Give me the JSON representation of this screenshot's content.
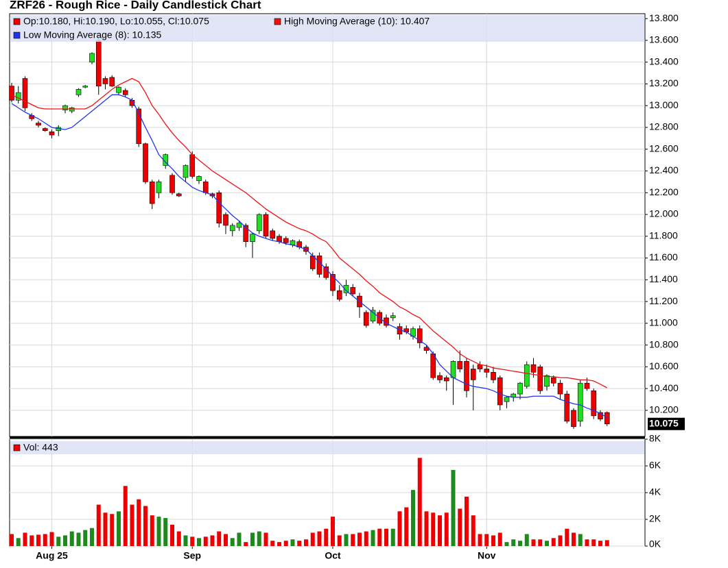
{
  "chart_data": [
    {
      "type": "candlestick",
      "title": "ZRF26 - Rough Rice - Daily Candlestick Chart",
      "legend": "Op:10.180, Hi:10.190, Lo:10.055, Cl:10.075",
      "up_color": "#22dd22",
      "down_color": "#ee0000",
      "open": [
        13.18,
        13.05,
        13.25,
        12.91,
        12.84,
        12.79,
        12.76,
        12.77,
        12.96,
        12.95,
        13.1,
        13.17,
        13.4,
        13.6,
        13.25,
        13.26,
        13.12,
        13.14,
        13.05,
        12.97,
        12.65,
        12.3,
        12.2,
        12.45,
        12.36,
        12.19,
        12.34,
        12.55,
        12.31,
        12.3,
        12.19,
        12.2,
        12.0,
        11.85,
        11.88,
        11.9,
        11.75,
        11.85,
        12.0,
        11.85,
        11.8,
        11.78,
        11.72,
        11.75,
        11.7,
        11.62,
        11.62,
        11.52,
        11.45,
        11.3,
        11.28,
        11.33,
        11.25,
        11.1,
        11.02,
        11.1,
        11.05,
        11.05,
        10.97,
        10.95,
        10.88,
        10.95,
        10.78,
        10.72,
        10.52,
        10.5,
        10.5,
        10.65,
        10.65,
        10.58,
        10.62,
        10.58,
        10.55,
        10.5,
        10.28,
        10.32,
        10.35,
        10.42,
        10.62,
        10.6,
        10.42,
        10.5,
        10.45,
        10.35,
        10.2,
        10.1,
        10.45,
        10.38,
        10.18,
        10.18
      ],
      "high": [
        13.21,
        13.18,
        13.27,
        12.93,
        12.86,
        12.8,
        12.78,
        12.82,
        13.01,
        12.99,
        13.16,
        13.19,
        13.49,
        13.65,
        13.27,
        13.28,
        13.18,
        13.16,
        13.07,
        12.99,
        12.66,
        12.32,
        12.32,
        12.56,
        12.38,
        12.2,
        12.46,
        12.58,
        12.36,
        12.32,
        12.2,
        12.22,
        12.02,
        11.92,
        11.94,
        11.92,
        11.83,
        12.01,
        12.02,
        11.87,
        11.82,
        11.8,
        11.77,
        11.77,
        11.72,
        11.65,
        11.65,
        11.55,
        11.48,
        11.35,
        11.4,
        11.36,
        11.28,
        11.12,
        11.15,
        11.12,
        11.08,
        11.1,
        11.0,
        10.98,
        10.97,
        10.98,
        10.8,
        10.74,
        10.55,
        10.52,
        10.66,
        10.75,
        10.68,
        10.62,
        10.65,
        10.62,
        10.6,
        10.52,
        10.33,
        10.36,
        10.46,
        10.65,
        10.68,
        10.62,
        10.53,
        10.52,
        10.48,
        10.38,
        10.22,
        10.48,
        10.5,
        10.4,
        10.2,
        10.19
      ],
      "low": [
        13.03,
        13.02,
        12.95,
        12.86,
        12.8,
        12.76,
        12.7,
        12.72,
        12.93,
        12.93,
        13.08,
        13.16,
        13.38,
        13.1,
        13.15,
        13.17,
        13.1,
        13.08,
        12.98,
        12.62,
        12.28,
        12.05,
        12.15,
        12.42,
        12.18,
        12.16,
        12.3,
        12.33,
        12.28,
        12.18,
        12.15,
        11.88,
        11.82,
        11.8,
        11.85,
        11.7,
        11.6,
        11.82,
        11.78,
        11.76,
        11.73,
        11.72,
        11.7,
        11.68,
        11.63,
        11.48,
        11.42,
        11.4,
        11.25,
        11.2,
        11.25,
        11.25,
        11.05,
        10.96,
        11.0,
        10.98,
        10.96,
        11.02,
        10.85,
        10.9,
        10.85,
        10.77,
        10.72,
        10.48,
        10.45,
        10.38,
        10.25,
        10.55,
        10.32,
        10.2,
        10.55,
        10.5,
        10.45,
        10.2,
        10.22,
        10.28,
        10.3,
        10.4,
        10.5,
        10.35,
        10.38,
        10.42,
        10.3,
        10.08,
        10.03,
        10.05,
        10.38,
        10.12,
        10.1,
        10.055
      ],
      "close": [
        13.05,
        13.12,
        12.98,
        12.88,
        12.82,
        12.77,
        12.73,
        12.8,
        13.0,
        12.98,
        13.15,
        13.18,
        13.48,
        13.18,
        13.2,
        13.18,
        13.17,
        13.1,
        13.0,
        12.65,
        12.3,
        12.1,
        12.3,
        12.55,
        12.2,
        12.17,
        12.45,
        12.35,
        12.35,
        12.2,
        12.17,
        11.92,
        11.9,
        11.9,
        11.92,
        11.75,
        11.82,
        12.0,
        11.8,
        11.78,
        11.75,
        11.74,
        11.76,
        11.7,
        11.66,
        11.5,
        11.45,
        11.42,
        11.3,
        11.22,
        11.35,
        11.27,
        11.15,
        10.98,
        11.12,
        11.0,
        10.98,
        11.07,
        10.9,
        10.92,
        10.95,
        10.82,
        10.75,
        10.5,
        10.48,
        10.47,
        10.65,
        10.58,
        10.38,
        10.48,
        10.58,
        10.55,
        10.48,
        10.25,
        10.32,
        10.35,
        10.45,
        10.62,
        10.55,
        10.38,
        10.52,
        10.45,
        10.35,
        10.1,
        10.05,
        10.45,
        10.4,
        10.15,
        10.12,
        10.075
      ],
      "series": [
        {
          "name": "High Moving Average (10): 10.407",
          "color": "#ee1111",
          "values": [
            13.1,
            13.07,
            13.04,
            13.01,
            12.98,
            12.97,
            12.97,
            12.97,
            12.97,
            12.97,
            12.97,
            12.97,
            13.0,
            13.05,
            13.1,
            13.15,
            13.19,
            13.22,
            13.25,
            13.22,
            13.12,
            13.0,
            12.92,
            12.83,
            12.75,
            12.68,
            12.62,
            12.55,
            12.5,
            12.45,
            12.4,
            12.36,
            12.32,
            12.28,
            12.24,
            12.2,
            12.15,
            12.1,
            12.05,
            12.01,
            11.97,
            11.93,
            11.9,
            11.87,
            11.85,
            11.82,
            11.78,
            11.75,
            11.68,
            11.6,
            11.55,
            11.5,
            11.45,
            11.39,
            11.34,
            11.28,
            11.24,
            11.2,
            11.15,
            11.12,
            11.08,
            11.05,
            10.99,
            10.93,
            10.88,
            10.83,
            10.78,
            10.72,
            10.68,
            10.65,
            10.62,
            10.61,
            10.59,
            10.58,
            10.57,
            10.56,
            10.55,
            10.54,
            10.53,
            10.52,
            10.51,
            10.51,
            10.5,
            10.5,
            10.49,
            10.48,
            10.48,
            10.47,
            10.44,
            10.407
          ]
        },
        {
          "name": "Low Moving Average (8): 10.135",
          "color": "#2233ee",
          "values": [
            13.02,
            12.98,
            12.94,
            12.91,
            12.88,
            12.84,
            12.8,
            12.79,
            12.78,
            12.8,
            12.85,
            12.9,
            12.95,
            13.0,
            13.05,
            13.1,
            13.1,
            13.08,
            13.05,
            12.93,
            12.8,
            12.68,
            12.55,
            12.48,
            12.42,
            12.35,
            12.3,
            12.25,
            12.22,
            12.2,
            12.18,
            12.11,
            12.05,
            11.99,
            11.94,
            11.88,
            11.83,
            11.8,
            11.78,
            11.76,
            11.75,
            11.73,
            11.72,
            11.7,
            11.68,
            11.62,
            11.56,
            11.5,
            11.43,
            11.37,
            11.3,
            11.25,
            11.2,
            11.15,
            11.1,
            11.05,
            11.0,
            10.97,
            10.94,
            10.92,
            10.88,
            10.84,
            10.8,
            10.72,
            10.62,
            10.56,
            10.5,
            10.47,
            10.44,
            10.42,
            10.41,
            10.4,
            10.38,
            10.35,
            10.33,
            10.32,
            10.32,
            10.32,
            10.33,
            10.33,
            10.33,
            10.33,
            10.3,
            10.28,
            10.26,
            10.25,
            10.22,
            10.2,
            10.17,
            10.135
          ]
        }
      ],
      "last_price": 10.075,
      "ylim": [
        9.96,
        13.845
      ],
      "yticks": [
        {
          "value": 10.2,
          "label": "10.200"
        },
        {
          "value": 10.4,
          "label": "10.400"
        },
        {
          "value": 10.6,
          "label": "10.600"
        },
        {
          "value": 10.8,
          "label": "10.800"
        },
        {
          "value": 11.0,
          "label": "11.000"
        },
        {
          "value": 11.2,
          "label": "11.200"
        },
        {
          "value": 11.4,
          "label": "11.400"
        },
        {
          "value": 11.6,
          "label": "11.600"
        },
        {
          "value": 11.8,
          "label": "11.800"
        },
        {
          "value": 12.0,
          "label": "12.000"
        },
        {
          "value": 12.2,
          "label": "12.200"
        },
        {
          "value": 12.4,
          "label": "12.400"
        },
        {
          "value": 12.6,
          "label": "12.600"
        },
        {
          "value": 12.8,
          "label": "12.800"
        },
        {
          "value": 13.0,
          "label": "13.000"
        },
        {
          "value": 13.2,
          "label": "13.200"
        },
        {
          "value": 13.4,
          "label": "13.400"
        },
        {
          "value": 13.6,
          "label": "13.600"
        },
        {
          "value": 13.8,
          "label": "13.800"
        }
      ],
      "grid": true
    },
    {
      "type": "bar",
      "name": "Vol: 443",
      "color": "#ee0000",
      "up_color": "#1e8a1e",
      "down_color": "#ee0000",
      "values": [
        900,
        600,
        1000,
        800,
        850,
        900,
        1050,
        700,
        800,
        1100,
        1000,
        1200,
        1350,
        3100,
        2500,
        2400,
        2600,
        4500,
        3100,
        3500,
        3000,
        2300,
        2200,
        2100,
        1600,
        1100,
        800,
        700,
        600,
        700,
        800,
        1100,
        900,
        600,
        1000,
        300,
        1000,
        1100,
        1000,
        400,
        300,
        400,
        500,
        400,
        500,
        1000,
        1100,
        1300,
        2200,
        800,
        900,
        900,
        1000,
        1100,
        1200,
        1300,
        1300,
        1300,
        2600,
        2900,
        4200,
        6600,
        2600,
        2500,
        2300,
        2500,
        5700,
        2800,
        3700,
        2300,
        900,
        900,
        800,
        1000,
        300,
        500,
        400,
        900,
        500,
        500,
        400,
        600,
        800,
        1300,
        1000,
        900,
        500,
        500,
        400,
        443
      ],
      "ylim": [
        0,
        8000
      ],
      "yticks": [
        {
          "value": 0,
          "label": "0K"
        },
        {
          "value": 2000,
          "label": "2K"
        },
        {
          "value": 4000,
          "label": "4K"
        },
        {
          "value": 6000,
          "label": "6K"
        },
        {
          "value": 8000,
          "label": "8K"
        }
      ],
      "xticks": [
        {
          "value": 6,
          "label": "Aug 25"
        },
        {
          "value": 27,
          "label": "Sep"
        },
        {
          "value": 48,
          "label": "Oct"
        },
        {
          "value": 71,
          "label": "Nov"
        }
      ],
      "grid": true
    }
  ]
}
